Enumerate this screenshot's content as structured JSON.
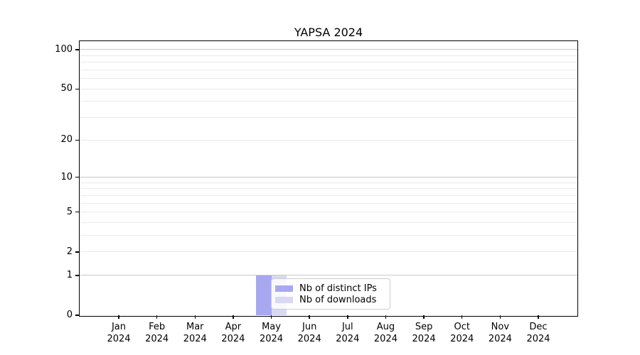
{
  "title": "YAPSA 2024",
  "legend": {
    "items": [
      {
        "label": "Nb of distinct IPs",
        "color": "#a8a8f0"
      },
      {
        "label": "Nb of downloads",
        "color": "#d9d9f3"
      }
    ]
  },
  "chart_data": {
    "type": "bar",
    "title": "YAPSA 2024",
    "categories": [
      "Jan",
      "Feb",
      "Mar",
      "Apr",
      "May",
      "Jun",
      "Jul",
      "Aug",
      "Sep",
      "Oct",
      "Nov",
      "Dec"
    ],
    "year_suffix": "2024",
    "series": [
      {
        "name": "Nb of distinct IPs",
        "color": "#a8a8f0",
        "values": [
          0,
          0,
          0,
          0,
          1,
          0,
          0,
          0,
          0,
          0,
          0,
          0
        ]
      },
      {
        "name": "Nb of downloads",
        "color": "#d9d9f3",
        "values": [
          0,
          0,
          0,
          0,
          1,
          0,
          0,
          0,
          0,
          0,
          0,
          0
        ]
      }
    ],
    "xlabel": "",
    "ylabel": "",
    "yscale": "log1p",
    "ylim": [
      0,
      116
    ],
    "y_ticks": [
      0,
      1,
      2,
      5,
      10,
      20,
      50,
      100
    ],
    "y_minor_gridlines": [
      2,
      3,
      4,
      5,
      6,
      7,
      8,
      9,
      20,
      30,
      40,
      50,
      60,
      70,
      80,
      90
    ],
    "y_major_gridlines": [
      1,
      10,
      100
    ],
    "grid": "horizontal",
    "legend_position": "lower center (over May bars)",
    "colors": {
      "spine": "#000000",
      "grid_minor": "#ebebeb",
      "grid_major": "#c9c9c9",
      "text": "#000000"
    }
  }
}
